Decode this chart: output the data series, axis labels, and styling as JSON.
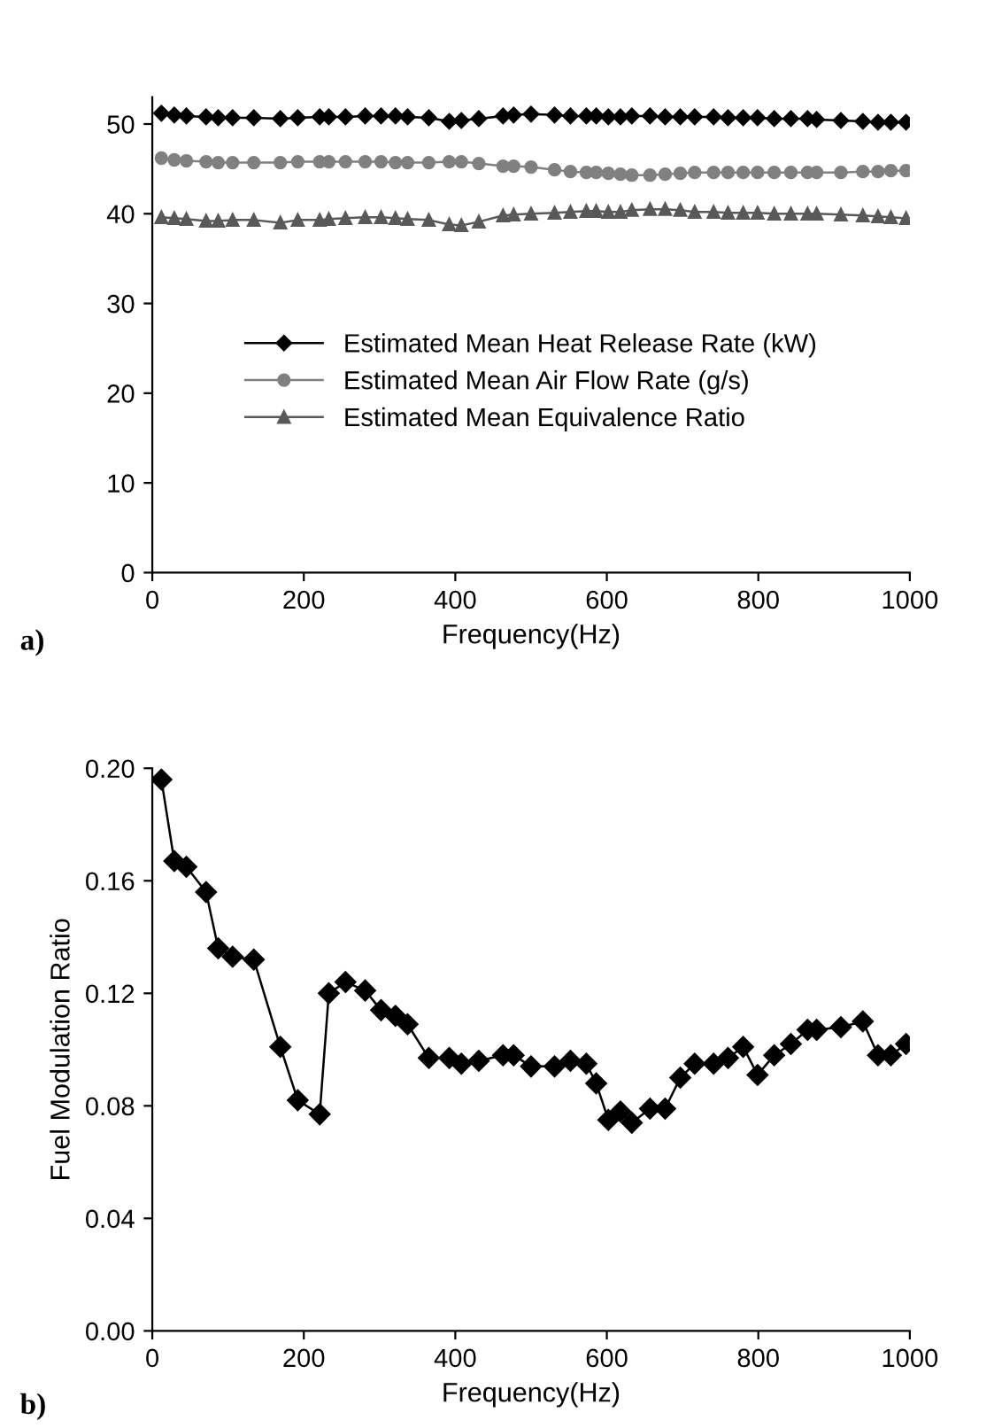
{
  "chart_data": [
    {
      "type": "line",
      "xlabel": "Frequency(Hz)",
      "xlim": [
        0,
        1000
      ],
      "xticks": [
        0,
        200,
        400,
        600,
        800,
        1000
      ],
      "ylim": [
        0,
        53
      ],
      "yticks": [
        0,
        10,
        20,
        30,
        40,
        50
      ],
      "grid": false,
      "legend": "center",
      "annotations": [
        "a)"
      ],
      "x": [
        12,
        29,
        45,
        71,
        87,
        106,
        134,
        169,
        192,
        221,
        233,
        255,
        281,
        302,
        321,
        337,
        365,
        392,
        408,
        431,
        463,
        477,
        500,
        531,
        552,
        573,
        586,
        602,
        618,
        633,
        657,
        677,
        697,
        716,
        741,
        760,
        780,
        799,
        821,
        843,
        865,
        877,
        909,
        938,
        958,
        975,
        995
      ],
      "series": [
        {
          "name": "Estimated Mean Heat Release Rate (kW)",
          "color": "#000000",
          "marker": "diamond",
          "values": [
            51.2,
            51,
            50.9,
            50.8,
            50.7,
            50.7,
            50.7,
            50.6,
            50.7,
            50.8,
            50.8,
            50.8,
            50.9,
            50.9,
            50.9,
            50.8,
            50.7,
            50.3,
            50.4,
            50.6,
            50.9,
            51,
            51.1,
            51,
            50.9,
            50.9,
            50.9,
            50.8,
            50.8,
            50.9,
            50.9,
            50.8,
            50.8,
            50.8,
            50.8,
            50.7,
            50.7,
            50.7,
            50.6,
            50.6,
            50.6,
            50.5,
            50.4,
            50.3,
            50.2,
            50.2,
            50.2
          ]
        },
        {
          "name": "Estimated Mean Air Flow Rate (g/s)",
          "color": "#808080",
          "marker": "circle",
          "values": [
            46.2,
            46,
            45.9,
            45.8,
            45.7,
            45.7,
            45.7,
            45.7,
            45.8,
            45.8,
            45.8,
            45.8,
            45.8,
            45.8,
            45.7,
            45.7,
            45.7,
            45.8,
            45.8,
            45.6,
            45.3,
            45.3,
            45.2,
            44.9,
            44.7,
            44.6,
            44.6,
            44.5,
            44.4,
            44.3,
            44.3,
            44.4,
            44.5,
            44.6,
            44.6,
            44.6,
            44.6,
            44.6,
            44.6,
            44.6,
            44.6,
            44.6,
            44.6,
            44.7,
            44.7,
            44.8,
            44.8
          ]
        },
        {
          "name": "Estimated Mean Equivalence Ratio",
          "color": "#595959",
          "marker": "triangle",
          "values": [
            39.6,
            39.5,
            39.4,
            39.2,
            39.2,
            39.3,
            39.3,
            39,
            39.3,
            39.3,
            39.4,
            39.5,
            39.6,
            39.6,
            39.5,
            39.4,
            39.3,
            38.8,
            38.7,
            39.1,
            39.8,
            39.9,
            40,
            40.1,
            40.2,
            40.3,
            40.3,
            40.2,
            40.2,
            40.4,
            40.5,
            40.5,
            40.4,
            40.2,
            40.2,
            40.1,
            40.1,
            40.1,
            40,
            40,
            40,
            40,
            39.9,
            39.8,
            39.7,
            39.6,
            39.5
          ]
        }
      ]
    },
    {
      "type": "line",
      "xlabel": "Frequency(Hz)",
      "ylabel": "Fuel Modulation Ratio",
      "xlim": [
        0,
        1000
      ],
      "xticks": [
        0,
        200,
        400,
        600,
        800,
        1000
      ],
      "ylim": [
        0,
        0.2
      ],
      "yticks": [
        {
          "value": 0,
          "label": "0.00"
        },
        {
          "value": 0.04,
          "label": "0.04"
        },
        {
          "value": 0.08,
          "label": "0.08"
        },
        {
          "value": 0.12,
          "label": "0.12"
        },
        {
          "value": 0.16,
          "label": "0.16"
        },
        {
          "value": 0.2,
          "label": "0.20"
        }
      ],
      "grid": false,
      "annotations": [
        "b)"
      ],
      "x": [
        12,
        29,
        45,
        71,
        87,
        106,
        134,
        169,
        192,
        221,
        233,
        255,
        281,
        302,
        321,
        337,
        365,
        392,
        408,
        431,
        463,
        477,
        500,
        531,
        552,
        573,
        586,
        602,
        618,
        633,
        657,
        677,
        697,
        716,
        741,
        760,
        780,
        799,
        821,
        843,
        865,
        877,
        909,
        938,
        958,
        975,
        995
      ],
      "series": [
        {
          "color": "#000000",
          "marker": "diamond",
          "values": [
            0.196,
            0.167,
            0.165,
            0.156,
            0.136,
            0.133,
            0.132,
            0.101,
            0.082,
            0.077,
            0.12,
            0.124,
            0.121,
            0.114,
            0.112,
            0.109,
            0.097,
            0.097,
            0.095,
            0.096,
            0.098,
            0.098,
            0.094,
            0.094,
            0.096,
            0.095,
            0.088,
            0.075,
            0.078,
            0.074,
            0.079,
            0.079,
            0.09,
            0.095,
            0.095,
            0.097,
            0.101,
            0.091,
            0.098,
            0.102,
            0.107,
            0.107,
            0.108,
            0.11,
            0.098,
            0.098,
            0.102
          ]
        }
      ]
    }
  ]
}
